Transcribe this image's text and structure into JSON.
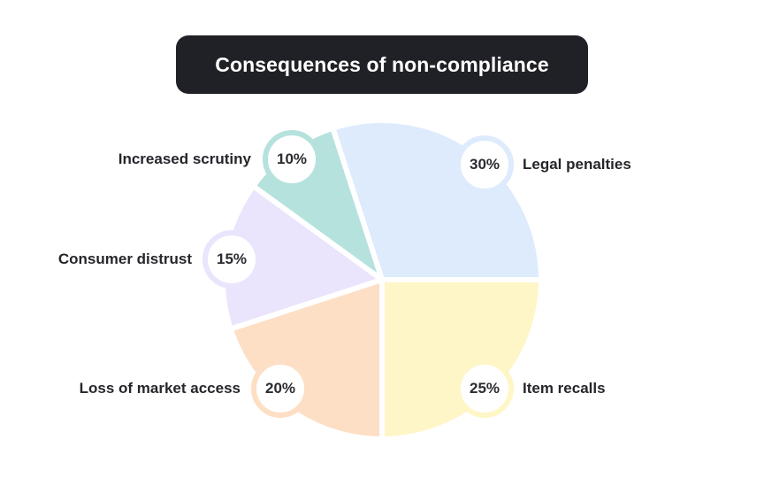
{
  "title": "Consequences of non-compliance",
  "colors": {
    "title_bg": "#202126",
    "title_text": "#ffffff",
    "label_text": "#25262b"
  },
  "slices": [
    {
      "label": "Legal penalties",
      "percent_label": "30%",
      "value": 30,
      "color": "#DDEBFD"
    },
    {
      "label": "Item recalls",
      "percent_label": "25%",
      "value": 25,
      "color": "#FFF6C7"
    },
    {
      "label": "Loss of market access",
      "percent_label": "20%",
      "value": 20,
      "color": "#FDDFC5"
    },
    {
      "label": "Consumer distrust",
      "percent_label": "15%",
      "value": 15,
      "color": "#EAE5FD"
    },
    {
      "label": "Increased scrutiny",
      "percent_label": "10%",
      "value": 10,
      "color": "#B6E2DE"
    }
  ],
  "chart_data": {
    "type": "pie",
    "title": "Consequences of non-compliance",
    "categories": [
      "Legal penalties",
      "Item recalls",
      "Loss of market access",
      "Consumer distrust",
      "Increased scrutiny"
    ],
    "values": [
      30,
      25,
      20,
      15,
      10
    ],
    "unit": "%",
    "colors": [
      "#DDEBFD",
      "#FFF6C7",
      "#FDDFC5",
      "#EAE5FD",
      "#B6E2DE"
    ],
    "start_angle_deg": -18,
    "direction": "clockwise",
    "legend": "none (direct labels)"
  }
}
